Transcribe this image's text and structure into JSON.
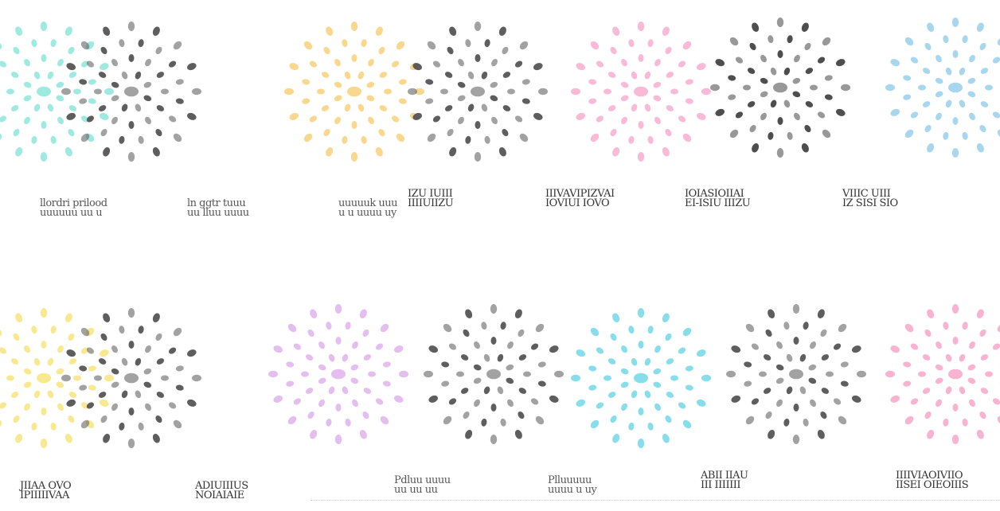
{
  "patterns": [
    {
      "color": "#7fe3d6",
      "style": "color"
    },
    {
      "color": "#555555",
      "style": "grey"
    },
    {
      "color": "#f7c96a",
      "style": "color"
    },
    {
      "color": "#555555",
      "style": "grey"
    },
    {
      "color": "#f5a3c8",
      "style": "color"
    },
    {
      "color": "#444444",
      "style": "grey"
    },
    {
      "color": "#8cc8ea",
      "style": "color"
    },
    {
      "color": "#f5e06a",
      "style": "color"
    },
    {
      "color": "#555555",
      "style": "grey"
    },
    {
      "color": "#d9a8ea",
      "style": "color"
    },
    {
      "color": "#555555",
      "style": "grey"
    },
    {
      "color": "#5fd3e3",
      "style": "color"
    },
    {
      "color": "#555555",
      "style": "grey"
    },
    {
      "color": "#f59ac0",
      "style": "color"
    }
  ],
  "captions": [
    {
      "lines": [
        "llordri prilood",
        "uuuuuu uu u"
      ]
    },
    {
      "lines": [
        "ln ggtr tuuu",
        "uu lluu uuuu"
      ]
    },
    {
      "lines": [
        "uuuuuk uuu",
        "u u uuuu uy"
      ]
    },
    {
      "lines": [
        "IZU IUIII",
        "IIIIUIIZU"
      ]
    },
    {
      "lines": [
        "IIIVAVIPIZVAI",
        "IOVIUI IOVO"
      ]
    },
    {
      "lines": [
        "IOIASIOIIAI",
        "EI-ISIU IIIZU"
      ]
    },
    {
      "lines": [
        "VIIIC UIII",
        "IZ SISI SIO"
      ]
    },
    {
      "lines": [
        "JIIAA OVO",
        "IPIIIIIVAA"
      ]
    },
    {
      "lines": [
        "ADIUIIIUS",
        "NOIAIAIE"
      ]
    },
    {
      "lines": [
        "Pdluu uuuu",
        "uu uu uu"
      ]
    },
    {
      "lines": [
        "Plluuuuu",
        "uuuu u uy"
      ]
    },
    {
      "lines": [
        "ABII IIAU",
        "III IIIIIII"
      ]
    },
    {
      "lines": [
        "IIIIVIAOIVIIO",
        "IISEI OIEOIIIS"
      ]
    }
  ]
}
